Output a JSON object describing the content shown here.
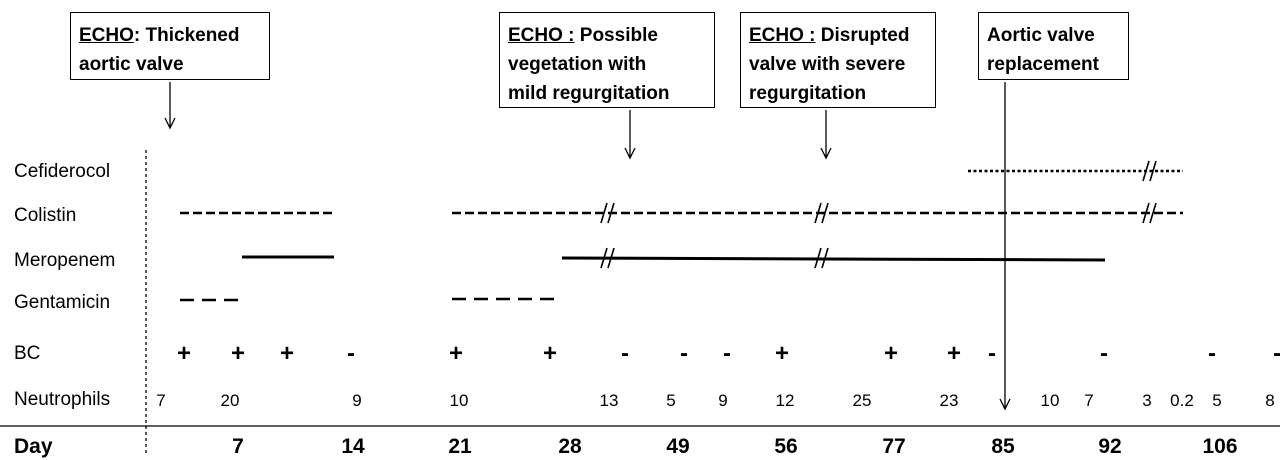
{
  "echo_boxes": [
    {
      "head": "ECHO",
      "sep": ":",
      "rest1": " Thickened",
      "line2": "aortic valve",
      "line3": ""
    },
    {
      "head": "ECHO :",
      "sep": "",
      "rest1": " Possible",
      "line2": "vegetation with",
      "line3": "mild regurgitation"
    },
    {
      "head": "ECHO :",
      "sep": "",
      "rest1": " Disrupted",
      "line2": "valve with severe",
      "line3": "regurgitation"
    },
    {
      "line1": "Aortic valve",
      "line2": "replacement"
    }
  ],
  "rows": {
    "cefiderocol": "Cefiderocol",
    "colistin": "Colistin",
    "meropenem": "Meropenem",
    "gentamicin": "Gentamicin",
    "bc": "BC",
    "neutrophils": "Neutrophils",
    "day": "Day"
  },
  "bc_values": [
    "+",
    "+",
    "+",
    "-",
    "+",
    "+",
    "-",
    "-",
    "-",
    "+",
    "+",
    "+",
    "-",
    "-",
    "-",
    "-"
  ],
  "neutrophil_values": [
    "7",
    "20",
    "9",
    "10",
    "13",
    "5",
    "9",
    "12",
    "25",
    "23",
    "10",
    "7",
    "3",
    "0.2",
    "5",
    "8"
  ],
  "days": [
    "7",
    "14",
    "21",
    "28",
    "49",
    "56",
    "77",
    "85",
    "92",
    "106"
  ]
}
